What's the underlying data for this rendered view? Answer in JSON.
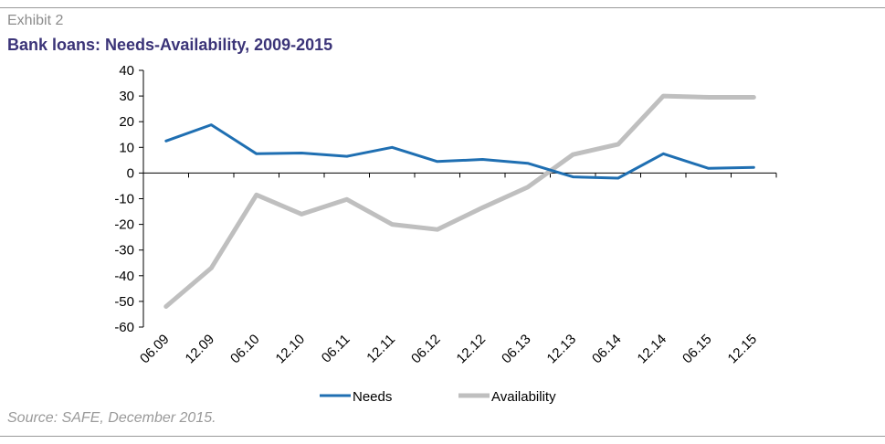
{
  "header": {
    "exhibit": "Exhibit 2",
    "title": "Bank loans: Needs-Availability, 2009-2015"
  },
  "footer": {
    "source": "Source: SAFE, December 2015."
  },
  "chart_data": {
    "type": "line",
    "title": "Bank loans: Needs-Availability, 2009-2015",
    "xlabel": "",
    "ylabel": "",
    "categories": [
      "06.09",
      "12.09",
      "06.10",
      "12.10",
      "06.11",
      "12.11",
      "06.12",
      "12.12",
      "06.13",
      "12.13",
      "06.14",
      "12.14",
      "06.15",
      "12.15"
    ],
    "yticks": [
      30,
      20,
      10,
      0,
      -10,
      -20,
      -30,
      -40,
      -50,
      -60
    ],
    "ylim": [
      -60,
      40
    ],
    "grid": false,
    "legend_position": "bottom",
    "series": [
      {
        "name": "Needs",
        "color": "#1f6fb2",
        "values": [
          12.5,
          18.8,
          7.5,
          7.8,
          6.5,
          10,
          4.5,
          5.3,
          3.8,
          -1.5,
          -2,
          7.5,
          1.8,
          2.2
        ]
      },
      {
        "name": "Availability",
        "color": "#bfbfbf",
        "values": [
          -52,
          -37,
          -8.5,
          -16,
          -10.3,
          -20,
          -22,
          -13.5,
          -5.5,
          7.2,
          11.2,
          30,
          29.5,
          29.5
        ]
      }
    ]
  }
}
